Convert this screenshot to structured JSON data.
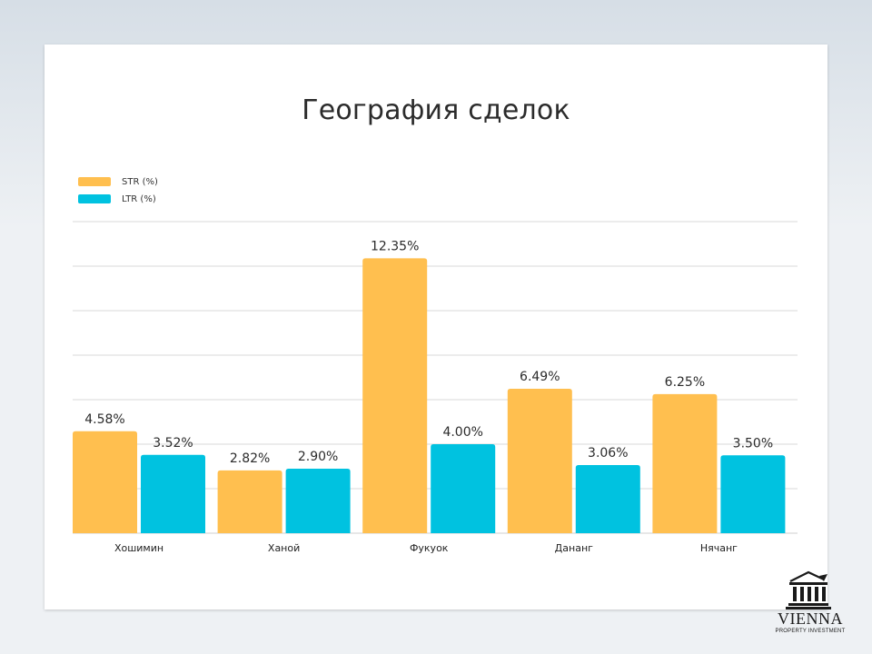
{
  "chart_data": {
    "type": "bar",
    "title": "География сделок",
    "categories": [
      "Хошимин",
      "Ханой",
      "Фукуок",
      "Дананг",
      "Нячанг"
    ],
    "series": [
      {
        "name": "STR (%)",
        "values": [
          4.58,
          2.82,
          12.35,
          6.49,
          6.25
        ],
        "labels": [
          "4.58%",
          "2.82%",
          "12.35%",
          "6.49%",
          "6.25%"
        ],
        "color": "#ffbf4f"
      },
      {
        "name": "LTR (%)",
        "values": [
          3.52,
          2.9,
          4.0,
          3.06,
          3.5
        ],
        "labels": [
          "3.52%",
          "2.90%",
          "4.00%",
          "3.06%",
          "3.50%"
        ],
        "color": "#00c2e0"
      }
    ],
    "ylim": [
      0,
      14
    ],
    "grid": true,
    "legend": "top-left"
  },
  "logo": {
    "name": "VIENNA",
    "tagline": "PROPERTY INVESTMENT"
  }
}
